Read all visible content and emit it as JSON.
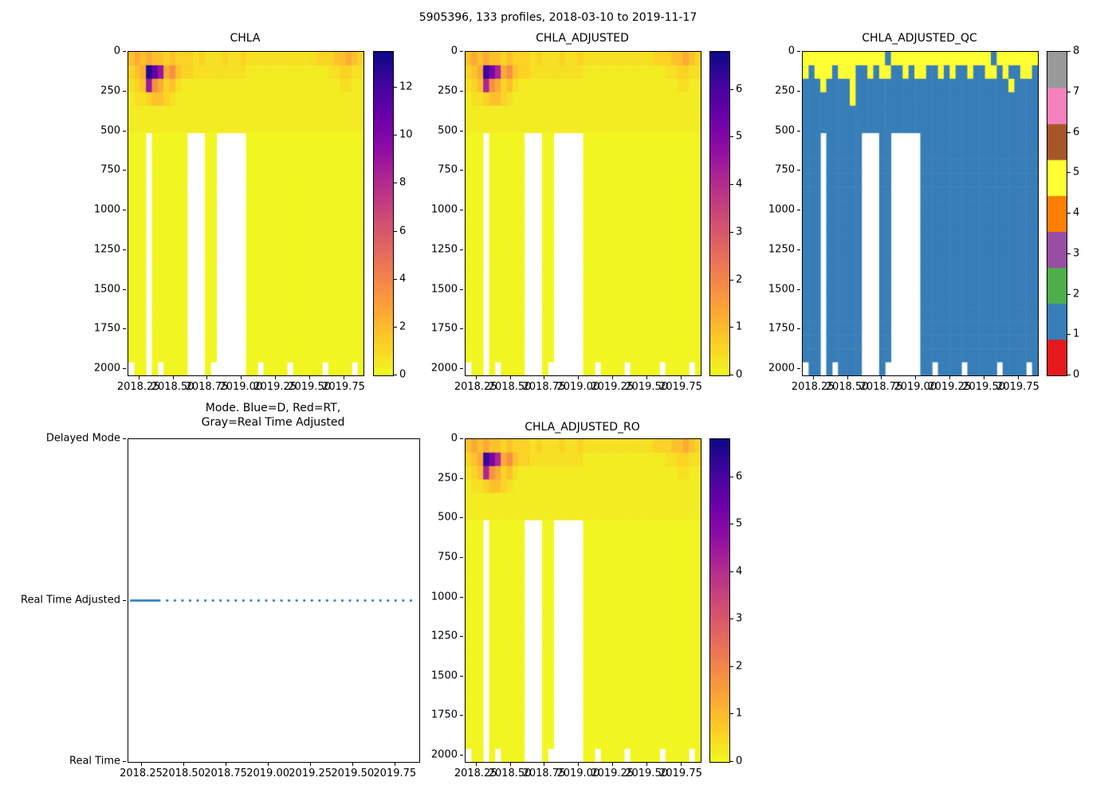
{
  "chart_data": {
    "figure_title": "5905396, 133 profiles, 2018-03-10 to 2019-11-17",
    "type": "heatmap",
    "x_axis": {
      "range": [
        2018.17,
        2019.89
      ],
      "tick_values": [
        2018.25,
        2018.5,
        2018.75,
        2019.0,
        2019.25,
        2019.5,
        2019.75
      ],
      "tick_labels": [
        "2018.25",
        "2018.50",
        "2018.75",
        "2019.00",
        "2019.25",
        "2019.50",
        "2019.75"
      ]
    },
    "depth_axis": {
      "range": [
        0,
        2040
      ],
      "tick_values": [
        0,
        250,
        500,
        750,
        1000,
        1250,
        1500,
        1750,
        2000
      ],
      "tick_labels": [
        "0",
        "250",
        "500",
        "750",
        "1000",
        "1250",
        "1500",
        "1750",
        "2000"
      ]
    },
    "grid_cols": 40,
    "grid_rows": 24,
    "colormap_stops": [
      [
        0.0,
        "#f0f921"
      ],
      [
        0.1,
        "#fcce25"
      ],
      [
        0.2,
        "#fca636"
      ],
      [
        0.3,
        "#f2844b"
      ],
      [
        0.4,
        "#e16462"
      ],
      [
        0.5,
        "#cc4778"
      ],
      [
        0.6,
        "#b12a90"
      ],
      [
        0.7,
        "#8f0da4"
      ],
      [
        0.8,
        "#6a00a8"
      ],
      [
        0.9,
        "#41049d"
      ],
      [
        1.0,
        "#0d0887"
      ]
    ],
    "qc_colors": [
      "#e41a1c",
      "#377eb8",
      "#4daf4a",
      "#984ea3",
      "#ff7f00",
      "#ffff33",
      "#a65628",
      "#f781bf",
      "#999999"
    ],
    "heatmaps": [
      {
        "id": "chla",
        "title": "CHLA",
        "discrete": false,
        "vmax": 13.5,
        "colorbar_scale_max": 13.5,
        "colorbar_tick_values": [
          0,
          2,
          4,
          6,
          8,
          10,
          12
        ],
        "colorbar_tick_labels": [
          "0",
          "2",
          "4",
          "6",
          "8",
          "10",
          "12"
        ],
        "levels": {
          "a": 0.1,
          "b": 0.4,
          "c": 0.8,
          "d": 1.2,
          "e": 1.8,
          "f": 2.5,
          "g": 3.5,
          "h": 5,
          "i": 7,
          "j": 9,
          "k": 11,
          "l": 13
        },
        "rows": [
          "efefeededddcdcccdccdccccccccccccdddeefed",
          "deflkjfgeddcccccccccbbbbbbbbbbbbbbccddcc",
          "cdejgfdecbbbbbbbbbbbbbbbbbbbbbbbbbbbccbb",
          "bccdeedcbbbbbbbbbbbbbbbbbbbbbbbbbbbbbbbb",
          [
            "bbbbbbbbbbbbbbbbbbbbbbbbbbbbbbbbbbbbbbbb",
            2
          ],
          [
            "aaa.aaaaaa...aa.....aaaaaaaaaaaaaaaaaaaa",
            17
          ],
          ".aa.a.aaaa...a......aa.aaaa.aaaaa.aaaa.a"
        ]
      },
      {
        "id": "chla_adjusted",
        "title": "CHLA_ADJUSTED",
        "discrete": false,
        "vmax": 6.8,
        "colorbar_scale_max": 6.8,
        "colorbar_tick_values": [
          0,
          1,
          2,
          3,
          4,
          5,
          6
        ],
        "colorbar_tick_labels": [
          "0",
          "1",
          "2",
          "3",
          "4",
          "5",
          "6"
        ],
        "levels": {
          "a": 0.05,
          "b": 0.2,
          "c": 0.4,
          "d": 0.6,
          "e": 0.9,
          "f": 1.3,
          "g": 1.8,
          "h": 2.5,
          "i": 3.3,
          "j": 4.2,
          "k": 5.2,
          "l": 6.2
        },
        "rows": [
          "efefeededddcdcccdccdccccccccccccdddeefed",
          "deflkjfgeddcccccccccbbbbbbbbbbbbbbccddcc",
          "cdejgfdecbbbbbbbbbbbbbbbbbbbbbbbbbbbccbb",
          "bccdeedcbbbbbbbbbbbbbbbbbbbbbbbbbbbbbbbb",
          [
            "bbbbbbbbbbbbbbbbbbbbbbbbbbbbbbbbbbbbbbbb",
            2
          ],
          [
            "aaa.aaaaaa...aa.....aaaaaaaaaaaaaaaaaaaa",
            17
          ],
          ".aa.a.aaaa...a......aa.aaaa.aaaaa.aaaa.a"
        ]
      },
      {
        "id": "chla_adjusted_qc",
        "title": "CHLA_ADJUSTED_QC",
        "discrete": true,
        "vmax": 8,
        "colorbar_scale_max": 8,
        "colorbar_tick_values": [
          0,
          1,
          2,
          3,
          4,
          5,
          6,
          7,
          8
        ],
        "colorbar_tick_labels": [
          "0",
          "1",
          "2",
          "3",
          "4",
          "5",
          "6",
          "7",
          "8"
        ],
        "levels": {},
        "rows": [
          "5555555555555515555555555555555515555555",
          "5155515551151551151551151511511551511551",
          "1115111151111111111111111111111111151111",
          "1111111151111111111111111111111111111111",
          [
            "1111111111111111111111111111111111111111",
            2
          ],
          [
            "111.111111...11.....11111111111111111111",
            17
          ],
          ".11.1.1111...1......11.1111.11111.1111.1"
        ]
      },
      {
        "id": "chla_adjusted_ro",
        "title": "CHLA_ADJUSTED_RO",
        "discrete": false,
        "vmax": 6.8,
        "colorbar_scale_max": 6.8,
        "colorbar_tick_values": [
          0,
          1,
          2,
          3,
          4,
          5,
          6
        ],
        "colorbar_tick_labels": [
          "0",
          "1",
          "2",
          "3",
          "4",
          "5",
          "6"
        ],
        "levels": {
          "a": 0.05,
          "b": 0.2,
          "c": 0.4,
          "d": 0.6,
          "e": 0.9,
          "f": 1.3,
          "g": 1.8,
          "h": 2.5,
          "i": 3.3,
          "j": 4.2,
          "k": 5.2,
          "l": 6.2
        },
        "rows": [
          "efefeededddcdcccdccdccccccccccccdddeefed",
          "deflkjfgeddcccccccccbbbbbbbbbbbbbbccddcc",
          "cdejgfdecbbbbbbbbbbbbbbbbbbbbbbbbbbbccbb",
          "bccdeedcbbbbbbbbbbbbbbbbbbbbbbbbbbbbbbbb",
          [
            "bbbbbbbbbbbbbbbbbbbbbbbbbbbbbbbbbbbbbbbb",
            2
          ],
          [
            "aaa.aaaaaa...aa.....aaaaaaaaaaaaaaaaaaaa",
            17
          ],
          ".aa.a.aaaa...a......aa.aaaa.aaaaa.aaaa.a"
        ]
      }
    ],
    "mode_plot": {
      "title_line1": "Mode. Blue=D, Red=RT,",
      "title_line2": "Gray=Real Time Adjusted",
      "y_category_labels": [
        "Delayed Mode",
        "Real Time Adjusted",
        "Real Time"
      ],
      "series": {
        "category": "Real Time Adjusted",
        "color": "#1f77b4",
        "solid_segment_x": [
          2018.18,
          2018.36
        ],
        "dotted_segment_x": [
          2018.4,
          2019.86
        ],
        "dot_spacing_years": 0.045
      }
    }
  }
}
